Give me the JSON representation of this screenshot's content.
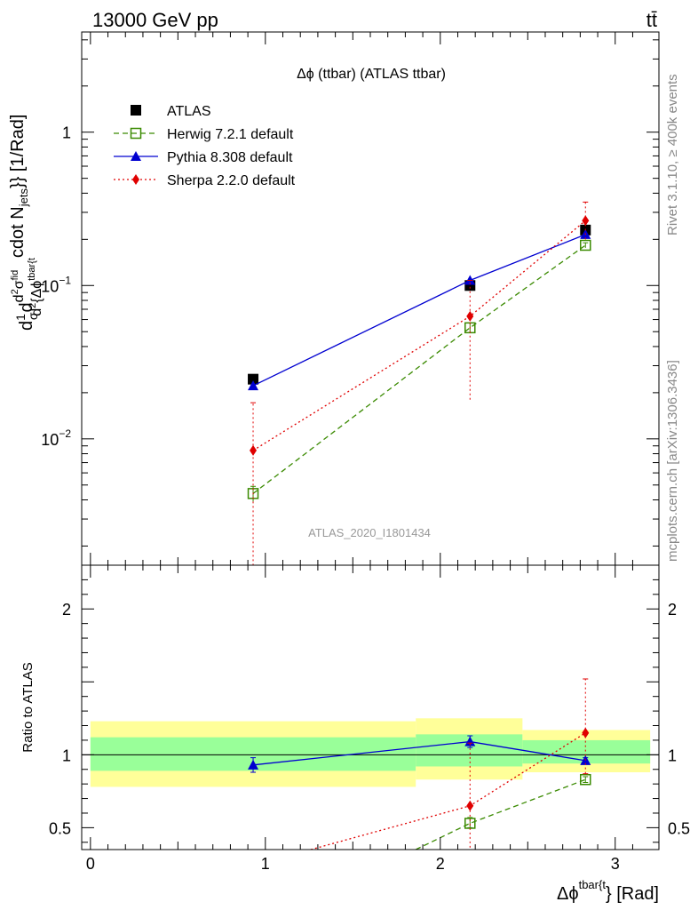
{
  "header": {
    "energy_label": "13000 GeV pp",
    "process_label": "tt̄"
  },
  "side_labels": {
    "rivet": "Rivet 3.1.10, ≥ 400k events",
    "mcplots": "mcplots.cern.ch [arXiv:1306.3436]"
  },
  "chart_data": [
    {
      "type": "line",
      "title": "Δϕ (ttbar) (ATLAS ttbar)",
      "watermark": "ATLAS_2020_I1801434",
      "ylabel_parts": {
        "pre": "d",
        "frac_num": "1",
        "frac_den": "σ",
        "mid": "d",
        "num_base": "d",
        "num_sup": "2",
        "sigma": "σ",
        "fid": "fid",
        "den_base": "d",
        "den_sup": "2",
        "den_rest": "{Δϕ",
        "tbar": "tbar{t",
        "post": "cdot N",
        "jets": "jets",
        "tail": "}} [1/Rad]"
      },
      "yscale": "log",
      "ylim": [
        0.0015,
        4.5
      ],
      "xlim": [
        -0.05,
        3.25
      ],
      "yticks": [
        {
          "v": 0.01,
          "base": "10",
          "exp": "−2"
        },
        {
          "v": 0.1,
          "base": "10",
          "exp": "−1"
        },
        {
          "v": 1,
          "base": "1",
          "exp": ""
        }
      ],
      "legend": {
        "placement": "top-left",
        "entries": [
          {
            "name": "ATLAS",
            "color": "#000000",
            "marker": "square-filled",
            "line": "none"
          },
          {
            "name": "Herwig 7.2.1 default",
            "color": "#3a8a00",
            "marker": "square-open",
            "line": "dashed"
          },
          {
            "name": "Pythia 8.308 default",
            "color": "#0000d0",
            "marker": "triangle",
            "line": "solid"
          },
          {
            "name": "Sherpa 2.2.0 default",
            "color": "#e00000",
            "marker": "diamond",
            "line": "dotted"
          }
        ]
      },
      "series": [
        {
          "name": "ATLAS",
          "x": [
            0.93,
            2.17,
            2.83
          ],
          "y": [
            0.0245,
            0.1,
            0.23
          ]
        },
        {
          "name": "Herwig 7.2.1 default",
          "x": [
            0.93,
            2.17,
            2.83
          ],
          "y": [
            0.0044,
            0.053,
            0.183
          ],
          "err_lo": [
            0.0039,
            0.049,
            0.176
          ],
          "err_hi": [
            0.0049,
            0.057,
            0.19
          ]
        },
        {
          "name": "Pythia 8.308 default",
          "x": [
            0.93,
            2.17,
            2.83
          ],
          "y": [
            0.0222,
            0.108,
            0.215
          ]
        },
        {
          "name": "Sherpa 2.2.0 default",
          "x": [
            0.93,
            2.17,
            2.83
          ],
          "y": [
            0.0084,
            0.063,
            0.265
          ],
          "err_lo": [
            0.001,
            0.018,
            0.2
          ],
          "err_hi": [
            0.0172,
            0.108,
            0.35
          ]
        }
      ]
    },
    {
      "type": "line",
      "ylabel": "Ratio to ATLAS",
      "xlabel_parts": {
        "base": "Δϕ",
        "sup": "tbar{t",
        "tail": "} [Rad]"
      },
      "ylim": [
        0.35,
        2.3
      ],
      "xlim": [
        -0.05,
        3.25
      ],
      "xticks": [
        0,
        1,
        2,
        3
      ],
      "yticks": [
        0.5,
        1,
        2
      ],
      "bands": [
        {
          "x0": 0.0,
          "x1": 1.86,
          "yellow": [
            0.78,
            1.23
          ],
          "green": [
            0.89,
            1.12
          ]
        },
        {
          "x0": 1.86,
          "x1": 2.47,
          "yellow": [
            0.83,
            1.25
          ],
          "green": [
            0.92,
            1.14
          ]
        },
        {
          "x0": 2.47,
          "x1": 3.2,
          "yellow": [
            0.88,
            1.17
          ],
          "green": [
            0.94,
            1.1
          ]
        }
      ],
      "series": [
        {
          "name": "Herwig 7.2.1 default",
          "x": [
            1.86,
            2.17,
            2.83
          ],
          "y": [
            0.35,
            0.53,
            0.83
          ],
          "markers": [
            false,
            true,
            true
          ],
          "err_lo": [
            null,
            0.5,
            0.81
          ],
          "err_hi": [
            null,
            0.57,
            0.85
          ]
        },
        {
          "name": "Pythia 8.308 default",
          "x": [
            0.93,
            2.17,
            2.83
          ],
          "y": [
            0.93,
            1.09,
            0.96
          ],
          "markers": [
            true,
            true,
            true
          ],
          "err_lo": [
            0.88,
            1.05,
            0.94
          ],
          "err_hi": [
            0.98,
            1.13,
            0.98
          ]
        },
        {
          "name": "Sherpa 2.2.0 default",
          "x": [
            1.26,
            2.17,
            2.83
          ],
          "y": [
            0.35,
            0.65,
            1.15
          ],
          "markers": [
            false,
            true,
            true
          ],
          "err_lo": [
            null,
            0.18,
            0.87
          ],
          "err_hi": [
            null,
            1.08,
            1.52
          ]
        }
      ]
    }
  ]
}
